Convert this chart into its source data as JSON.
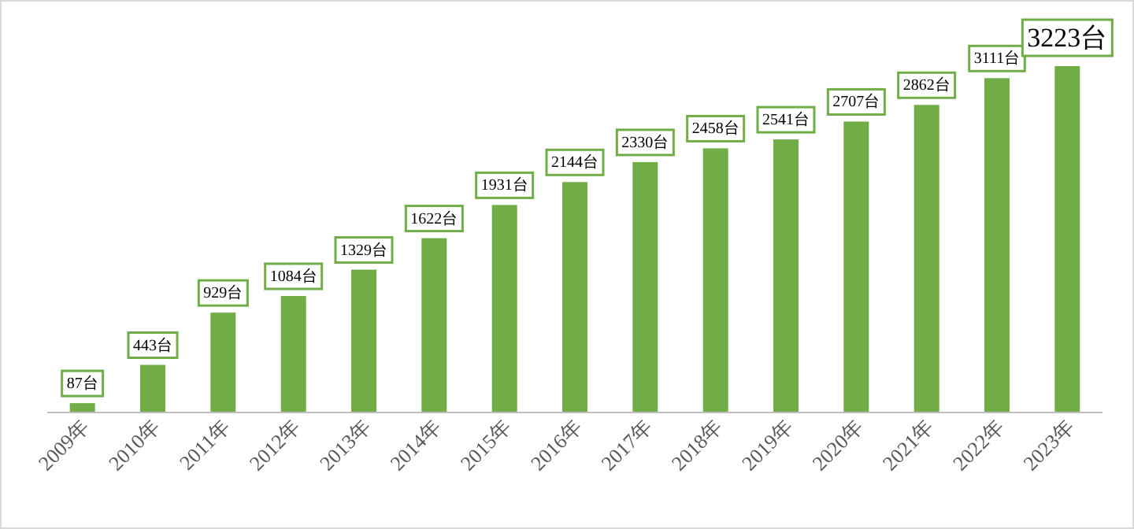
{
  "chart_data": {
    "type": "bar",
    "categories": [
      "2009年",
      "2010年",
      "2011年",
      "2012年",
      "2013年",
      "2014年",
      "2015年",
      "2016年",
      "2017年",
      "2018年",
      "2019年",
      "2020年",
      "2021年",
      "2022年",
      "2023年"
    ],
    "values": [
      87,
      443,
      929,
      1084,
      1329,
      1622,
      1931,
      2144,
      2330,
      2458,
      2541,
      2707,
      2862,
      3111,
      3223
    ],
    "value_labels": [
      "87台",
      "443台",
      "929台",
      "1084台",
      "1329台",
      "1622台",
      "1931台",
      "2144台",
      "2330台",
      "2458台",
      "2541台",
      "2707台",
      "2862台",
      "3111台",
      "3223台"
    ],
    "color": "#70ad47"
  }
}
